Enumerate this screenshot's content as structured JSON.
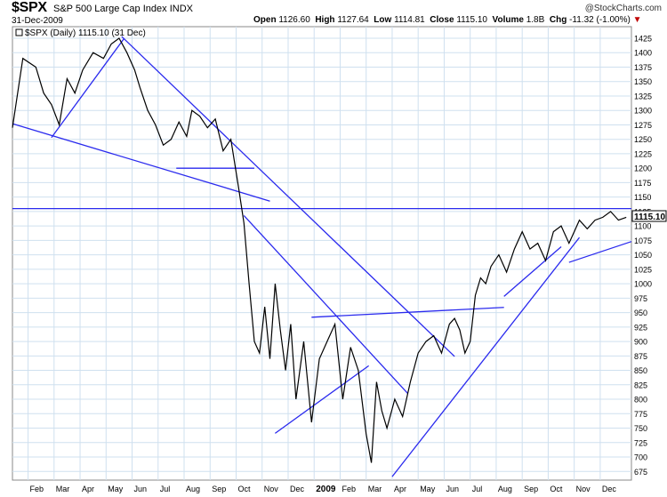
{
  "header": {
    "symbol": "$SPX",
    "name": "S&P 500 Large Cap Index",
    "exchange": "INDX",
    "date": "31-Dec-2009",
    "watermark": "@StockCharts.com",
    "quote": [
      {
        "label": "Open",
        "value": "1126.60"
      },
      {
        "label": "High",
        "value": "1127.64"
      },
      {
        "label": "Low",
        "value": "1114.81"
      },
      {
        "label": "Close",
        "value": "1115.10"
      },
      {
        "label": "Volume",
        "value": "1.8B"
      },
      {
        "label": "Chg",
        "value": "-11.32 (-1.00%)",
        "arrow": "▼"
      }
    ]
  },
  "chart_data": {
    "type": "line",
    "legend": "$SPX (Daily) 1115.10 (31 Dec)",
    "last_value_label": "1115.10",
    "x_tick_labels": [
      "Feb",
      "Mar",
      "Apr",
      "May",
      "Jun",
      "Jul",
      "Aug",
      "Sep",
      "Oct",
      "Nov",
      "Dec",
      "2009",
      "Feb",
      "Mar",
      "Apr",
      "May",
      "Jun",
      "Jul",
      "Aug",
      "Sep",
      "Oct",
      "Nov",
      "Dec"
    ],
    "y_ticks": [
      675,
      700,
      725,
      750,
      775,
      800,
      825,
      850,
      875,
      900,
      925,
      950,
      975,
      1000,
      1025,
      1050,
      1075,
      1100,
      1125,
      1150,
      1175,
      1200,
      1225,
      1250,
      1275,
      1300,
      1325,
      1350,
      1375,
      1400,
      1425
    ],
    "ylim": [
      660,
      1445
    ],
    "x_range_months": [
      -0.6,
      23.2
    ],
    "grid": true,
    "series": [
      {
        "x_months": [
          -0.6,
          -0.2,
          0.3,
          0.6,
          0.9,
          1.2,
          1.5,
          1.8,
          2.1,
          2.5,
          2.9,
          3.2,
          3.5,
          3.8,
          4.1,
          4.3,
          4.6,
          4.9,
          5.2,
          5.5,
          5.8,
          6.1,
          6.3,
          6.6,
          6.9,
          7.2,
          7.5,
          7.8,
          8.1,
          8.3,
          8.5,
          8.7,
          8.9,
          9.1,
          9.3,
          9.5,
          9.7,
          9.9,
          10.1,
          10.3,
          10.6,
          10.9,
          11.2,
          11.5,
          11.8,
          12.1,
          12.4,
          12.7,
          13.0,
          13.2,
          13.4,
          13.6,
          13.8,
          14.1,
          14.4,
          14.7,
          15.0,
          15.3,
          15.6,
          15.9,
          16.2,
          16.4,
          16.6,
          16.8,
          17.0,
          17.2,
          17.4,
          17.6,
          17.8,
          18.1,
          18.4,
          18.7,
          19.0,
          19.3,
          19.6,
          19.9,
          20.2,
          20.5,
          20.8,
          21.0,
          21.2,
          21.5,
          21.8,
          22.1,
          22.4,
          22.7,
          23.0
        ],
        "close": [
          1270,
          1390,
          1375,
          1330,
          1310,
          1275,
          1355,
          1330,
          1370,
          1400,
          1390,
          1415,
          1425,
          1400,
          1370,
          1340,
          1300,
          1275,
          1240,
          1250,
          1280,
          1255,
          1300,
          1290,
          1270,
          1285,
          1230,
          1250,
          1165,
          1105,
          1000,
          900,
          880,
          960,
          870,
          1000,
          920,
          850,
          930,
          800,
          900,
          760,
          870,
          900,
          930,
          800,
          890,
          850,
          740,
          690,
          830,
          780,
          750,
          800,
          770,
          830,
          880,
          900,
          910,
          880,
          930,
          940,
          920,
          880,
          900,
          980,
          1010,
          1000,
          1030,
          1050,
          1020,
          1060,
          1090,
          1060,
          1070,
          1040,
          1090,
          1100,
          1070,
          1090,
          1110,
          1095,
          1110,
          1115,
          1125,
          1110,
          1115
        ]
      }
    ],
    "trendlines": [
      {
        "from": [
          -0.6,
          1277
        ],
        "to": [
          9.3,
          1143
        ]
      },
      {
        "from": [
          0.9,
          1253
        ],
        "to": [
          3.7,
          1425
        ]
      },
      {
        "from": [
          3.6,
          1428
        ],
        "to": [
          16.4,
          874
        ]
      },
      {
        "from": [
          5.7,
          1200
        ],
        "to": [
          8.7,
          1200
        ]
      },
      {
        "from": [
          8.3,
          1118
        ],
        "to": [
          14.6,
          810
        ]
      },
      {
        "from": [
          9.5,
          741
        ],
        "to": [
          13.1,
          858
        ]
      },
      {
        "from": [
          10.9,
          942
        ],
        "to": [
          18.3,
          959
        ]
      },
      {
        "from": [
          14.0,
          666
        ],
        "to": [
          21.2,
          1080
        ]
      },
      {
        "from": [
          18.3,
          978
        ],
        "to": [
          20.5,
          1064
        ]
      },
      {
        "from": [
          20.8,
          1037
        ],
        "to": [
          23.2,
          1073
        ]
      },
      {
        "from": [
          -0.6,
          1130
        ],
        "to": [
          23.2,
          1130
        ]
      }
    ]
  },
  "colors": {
    "price": "#000000",
    "trendline": "#2a2aee",
    "grid": "#cfe0ef",
    "negative": "#c00000"
  }
}
